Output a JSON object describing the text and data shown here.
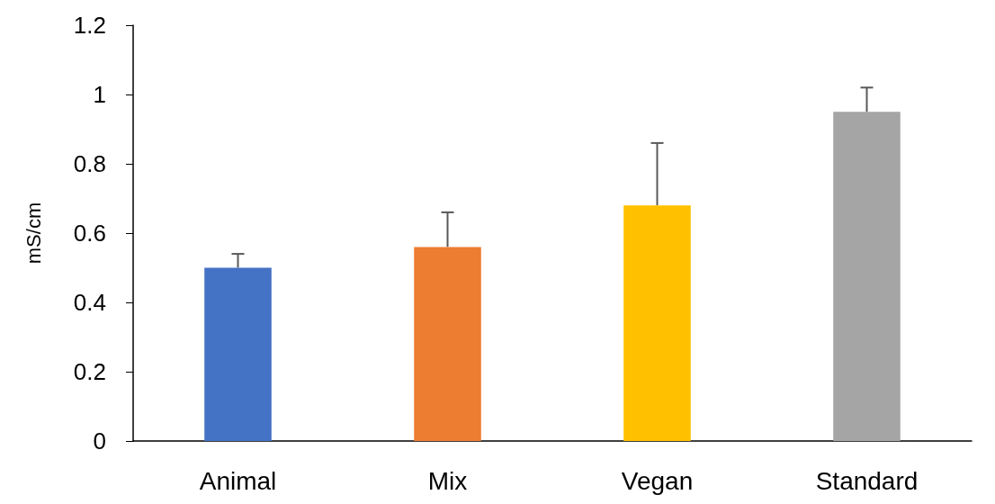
{
  "chart_data": {
    "type": "bar",
    "ylabel": "mS/cm",
    "categories": [
      "Animal",
      "Mix",
      "Vegan",
      "Standard"
    ],
    "values": [
      0.5,
      0.56,
      0.68,
      0.95
    ],
    "colors": [
      "#4472c4",
      "#ed7d31",
      "#ffc000",
      "#a5a5a5"
    ],
    "errors": [
      [
        0.5,
        0.54
      ],
      [
        0.56,
        0.66
      ],
      [
        0.68,
        0.86
      ],
      [
        0.95,
        1.02
      ]
    ],
    "ylim": [
      0,
      1.2
    ],
    "yticks": [
      0,
      0.2,
      0.4,
      0.6,
      0.8,
      1,
      1.2
    ],
    "grid": false
  }
}
